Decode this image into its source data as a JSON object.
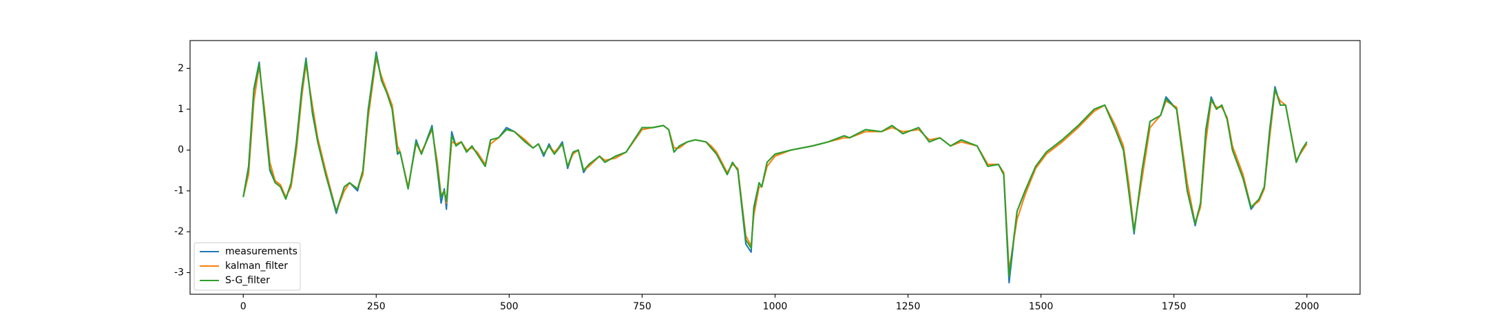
{
  "chart_data": {
    "type": "line",
    "x": [
      0,
      10,
      20,
      30,
      40,
      50,
      60,
      70,
      80,
      90,
      100,
      110,
      118,
      130,
      140,
      155,
      175,
      190,
      200,
      215,
      225,
      235,
      250,
      260,
      270,
      280,
      290,
      295,
      310,
      325,
      335,
      355,
      365,
      372,
      378,
      382,
      392,
      400,
      410,
      420,
      430,
      440,
      455,
      465,
      480,
      495,
      510,
      530,
      545,
      555,
      565,
      575,
      585,
      600,
      610,
      620,
      630,
      640,
      650,
      670,
      680,
      700,
      720,
      750,
      770,
      790,
      800,
      810,
      820,
      835,
      850,
      870,
      880,
      890,
      910,
      920,
      930,
      945,
      955,
      960,
      970,
      975,
      985,
      1000,
      1030,
      1070,
      1100,
      1130,
      1140,
      1170,
      1200,
      1220,
      1240,
      1270,
      1290,
      1310,
      1330,
      1350,
      1380,
      1400,
      1420,
      1430,
      1440,
      1455,
      1470,
      1490,
      1510,
      1540,
      1570,
      1600,
      1620,
      1640,
      1655,
      1665,
      1675,
      1690,
      1705,
      1725,
      1735,
      1755,
      1775,
      1790,
      1800,
      1810,
      1820,
      1830,
      1840,
      1850,
      1860,
      1880,
      1895,
      1910,
      1920,
      1930,
      1940,
      1950,
      1960,
      1980,
      1990,
      2000
    ],
    "series": [
      {
        "name": "measurements",
        "color": "#1f77b4",
        "values": [
          -1.15,
          -0.4,
          1.5,
          2.15,
          0.8,
          -0.5,
          -0.8,
          -0.9,
          -1.2,
          -0.8,
          0.2,
          1.5,
          2.25,
          0.9,
          0.2,
          -0.6,
          -1.55,
          -0.9,
          -0.8,
          -1.0,
          -0.5,
          1.0,
          2.4,
          1.7,
          1.4,
          1.0,
          -0.1,
          -0.05,
          -0.95,
          0.25,
          -0.1,
          0.6,
          -0.5,
          -1.3,
          -0.95,
          -1.45,
          0.45,
          0.1,
          0.2,
          -0.05,
          0.1,
          -0.1,
          -0.4,
          0.25,
          0.3,
          0.55,
          0.45,
          0.2,
          0.05,
          0.15,
          -0.15,
          0.15,
          -0.1,
          0.2,
          -0.45,
          -0.05,
          0,
          -0.55,
          -0.35,
          -0.15,
          -0.3,
          -0.15,
          -0.05,
          0.55,
          0.55,
          0.6,
          0.5,
          -0.05,
          0.1,
          0.2,
          0.25,
          0.2,
          0.05,
          -0.1,
          -0.6,
          -0.3,
          -0.5,
          -2.3,
          -2.5,
          -1.4,
          -0.8,
          -0.9,
          -0.3,
          -0.1,
          0,
          0.1,
          0.2,
          0.35,
          0.3,
          0.5,
          0.45,
          0.6,
          0.4,
          0.55,
          0.2,
          0.3,
          0.1,
          0.25,
          0.1,
          -0.4,
          -0.35,
          -0.6,
          -3.25,
          -1.5,
          -1.0,
          -0.4,
          -0.05,
          0.25,
          0.6,
          1.0,
          1.1,
          0.5,
          0,
          -1.0,
          -2.05,
          -0.5,
          0.7,
          0.85,
          1.3,
          1.0,
          -1.0,
          -1.85,
          -1.3,
          0.5,
          1.3,
          1.0,
          1.1,
          0.75,
          0,
          -0.7,
          -1.45,
          -1.2,
          -0.9,
          0.5,
          1.55,
          1.1,
          1.1,
          -0.3,
          0,
          0.2
        ]
      },
      {
        "name": "kalman_filter",
        "color": "#ff7f0e",
        "values": [
          -1.15,
          -0.6,
          1.2,
          2.05,
          1.0,
          -0.3,
          -0.75,
          -0.85,
          -1.15,
          -0.9,
          0.0,
          1.3,
          2.1,
          1.1,
          0.3,
          -0.5,
          -1.5,
          -1.0,
          -0.8,
          -0.95,
          -0.6,
          0.8,
          2.25,
          1.8,
          1.45,
          1.1,
          0.1,
          -0.05,
          -0.9,
          0.15,
          -0.05,
          0.5,
          -0.3,
          -1.1,
          -1.0,
          -1.3,
          0.2,
          0.15,
          0.2,
          0,
          0.05,
          -0.05,
          -0.35,
          0.15,
          0.3,
          0.5,
          0.45,
          0.25,
          0.05,
          0.15,
          -0.1,
          0.1,
          -0.05,
          0.15,
          -0.4,
          -0.1,
          0,
          -0.5,
          -0.4,
          -0.15,
          -0.25,
          -0.2,
          -0.05,
          0.5,
          0.55,
          0.6,
          0.5,
          0.05,
          0.05,
          0.2,
          0.25,
          0.2,
          0.1,
          -0.05,
          -0.55,
          -0.35,
          -0.45,
          -2.1,
          -2.35,
          -1.6,
          -0.9,
          -0.9,
          -0.4,
          -0.15,
          0,
          0.1,
          0.2,
          0.3,
          0.3,
          0.45,
          0.45,
          0.55,
          0.45,
          0.5,
          0.25,
          0.3,
          0.1,
          0.2,
          0.1,
          -0.35,
          -0.35,
          -0.55,
          -2.95,
          -1.7,
          -1.1,
          -0.45,
          -0.1,
          0.2,
          0.55,
          0.95,
          1.1,
          0.6,
          0.1,
          -0.8,
          -1.95,
          -0.7,
          0.55,
          0.85,
          1.2,
          1.05,
          -0.8,
          -1.8,
          -1.4,
          0.2,
          1.2,
          1.05,
          1.05,
          0.8,
          0.1,
          -0.6,
          -1.4,
          -1.25,
          -0.95,
          0.3,
          1.45,
          1.2,
          1.1,
          -0.25,
          -0.05,
          0.15
        ]
      },
      {
        "name": "S-G_filter",
        "color": "#2ca02c",
        "values": [
          -1.15,
          -0.45,
          1.45,
          2.1,
          0.85,
          -0.45,
          -0.8,
          -0.9,
          -1.2,
          -0.8,
          0.15,
          1.45,
          2.2,
          0.95,
          0.2,
          -0.6,
          -1.5,
          -0.9,
          -0.8,
          -0.95,
          -0.5,
          0.95,
          2.35,
          1.7,
          1.4,
          1.0,
          -0.05,
          -0.05,
          -0.95,
          0.2,
          -0.1,
          0.55,
          -0.45,
          -1.15,
          -1.0,
          -1.25,
          0.35,
          0.1,
          0.2,
          -0.05,
          0.1,
          -0.1,
          -0.4,
          0.25,
          0.3,
          0.5,
          0.45,
          0.2,
          0.05,
          0.15,
          -0.1,
          0.1,
          -0.1,
          0.15,
          -0.4,
          -0.05,
          0,
          -0.5,
          -0.35,
          -0.15,
          -0.3,
          -0.15,
          -0.05,
          0.55,
          0.55,
          0.6,
          0.5,
          -0.05,
          0.1,
          0.2,
          0.25,
          0.2,
          0.05,
          -0.1,
          -0.6,
          -0.3,
          -0.5,
          -2.2,
          -2.4,
          -1.45,
          -0.8,
          -0.9,
          -0.3,
          -0.1,
          0,
          0.1,
          0.2,
          0.35,
          0.3,
          0.5,
          0.45,
          0.6,
          0.4,
          0.55,
          0.2,
          0.3,
          0.1,
          0.25,
          0.1,
          -0.4,
          -0.35,
          -0.6,
          -3.1,
          -1.5,
          -1.0,
          -0.4,
          -0.05,
          0.25,
          0.6,
          1.0,
          1.1,
          0.5,
          0,
          -1.0,
          -2.0,
          -0.5,
          0.7,
          0.85,
          1.25,
          1.0,
          -1.0,
          -1.8,
          -1.3,
          0.45,
          1.25,
          1.0,
          1.1,
          0.75,
          0,
          -0.7,
          -1.4,
          -1.2,
          -0.9,
          0.45,
          1.5,
          1.1,
          1.1,
          -0.3,
          0,
          0.2
        ]
      }
    ],
    "xlim": [
      -100,
      2100
    ],
    "xticks": [
      0,
      250,
      500,
      750,
      1000,
      1250,
      1500,
      1750,
      2000
    ],
    "ylim": [
      -3.53,
      2.68
    ],
    "yticks": [
      -3,
      -2,
      -1,
      0,
      1,
      2
    ],
    "legend": "lower left"
  }
}
